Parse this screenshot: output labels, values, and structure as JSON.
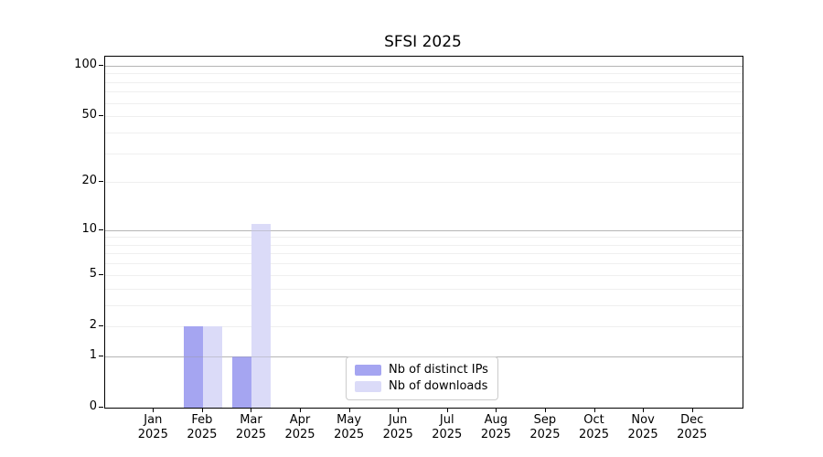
{
  "chart_data": {
    "type": "bar",
    "title": "SFSI 2025",
    "year": "2025",
    "categories": [
      "Jan",
      "Feb",
      "Mar",
      "Apr",
      "May",
      "Jun",
      "Jul",
      "Aug",
      "Sep",
      "Oct",
      "Nov",
      "Dec"
    ],
    "series": [
      {
        "name": "Nb of distinct IPs",
        "color": "#a5a5f1",
        "values": [
          0,
          2,
          1,
          0,
          0,
          0,
          0,
          0,
          0,
          0,
          0,
          0
        ]
      },
      {
        "name": "Nb of downloads",
        "color": "#dbdbf8",
        "values": [
          0,
          2,
          11,
          0,
          0,
          0,
          0,
          0,
          0,
          0,
          0,
          0
        ]
      }
    ],
    "yscale": "log1p",
    "ylim": [
      0,
      112
    ],
    "ytick_values": [
      0,
      1,
      2,
      5,
      10,
      20,
      50,
      100
    ],
    "grid": {
      "major_values": [
        1,
        10,
        100
      ],
      "minor_values": [
        2,
        3,
        4,
        5,
        6,
        7,
        8,
        9,
        20,
        30,
        40,
        50,
        60,
        70,
        80,
        90
      ],
      "major_color": "#c9c9c9",
      "minor_color": "#efefef"
    },
    "legend_position": "lower center",
    "xlabel": "",
    "ylabel": ""
  },
  "figure": {
    "background": "#ffffff",
    "axis_color": "#000000",
    "text_color": "#000000"
  }
}
